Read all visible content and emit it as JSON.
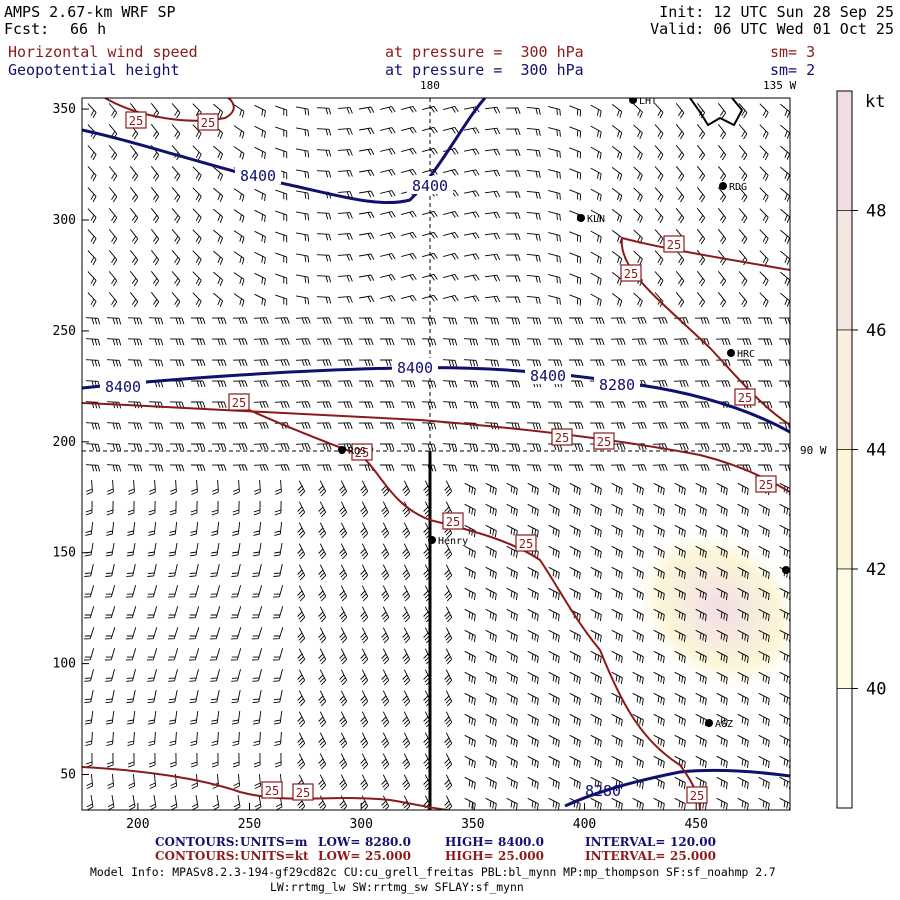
{
  "header": {
    "model": "AMPS 2.67-km WRF SP",
    "fcst_label": "Fcst:",
    "fcst_value": "66 h",
    "init": "Init: 12 UTC Sun 28 Sep 25",
    "valid": "Valid: 06 UTC Wed 01 Oct 25",
    "field1_name": "Horizontal wind speed",
    "field1_level": "at pressure =  300 hPa",
    "field1_sm": "sm= 3",
    "field2_name": "Geopotential height",
    "field2_level": "at pressure =  300 hPa",
    "field2_sm": "sm= 2"
  },
  "map": {
    "meridian_labels": {
      "top": "180",
      "top_right": "135 W",
      "right": "90 W"
    },
    "x_ticks": [
      "200",
      "250",
      "300",
      "350",
      "400",
      "450"
    ],
    "y_ticks": [
      "50",
      "100",
      "150",
      "200",
      "250",
      "300",
      "350"
    ],
    "stations": [
      "LHT",
      "RDG",
      "KLN",
      "HRC",
      "ROS",
      "Henry",
      "AGZ"
    ],
    "height_contour_labels": [
      "8400",
      "8400",
      "8400",
      "8400",
      "8400",
      "8280"
    ],
    "speed_contour_label": "25"
  },
  "colorbar": {
    "unit": "kt",
    "labels": [
      "48",
      "46",
      "44",
      "42",
      "40"
    ],
    "colors": [
      "#f2dde6",
      "#f6e6e2",
      "#faeedd",
      "#fbf6d6",
      "#fdfbe4",
      "#ffffff"
    ]
  },
  "footer": {
    "line1": {
      "label": "CONTOURS:",
      "units": "UNITS=m",
      "low_label": "LOW=",
      "low": "8280.0",
      "high_label": "HIGH=",
      "high": "8400.0",
      "interval_label": "INTERVAL=",
      "interval": "120.00"
    },
    "line2": {
      "label": "CONTOURS:",
      "units": "UNITS=kt",
      "low_label": "LOW=",
      "low": "25.000",
      "high_label": "HIGH=",
      "high": "25.000",
      "interval_label": "INTERVAL=",
      "interval": "25.000"
    },
    "info1": "Model Info: MPASv8.2.3-194-gf29cd82c CU:cu_grell_freitas PBL:bl_mynn MP:mp_thompson SF:sf_noahmp 2.7",
    "info2": "LW:rrtmg_lw SW:rrtmg_sw SFLAY:sf_mynn"
  }
}
